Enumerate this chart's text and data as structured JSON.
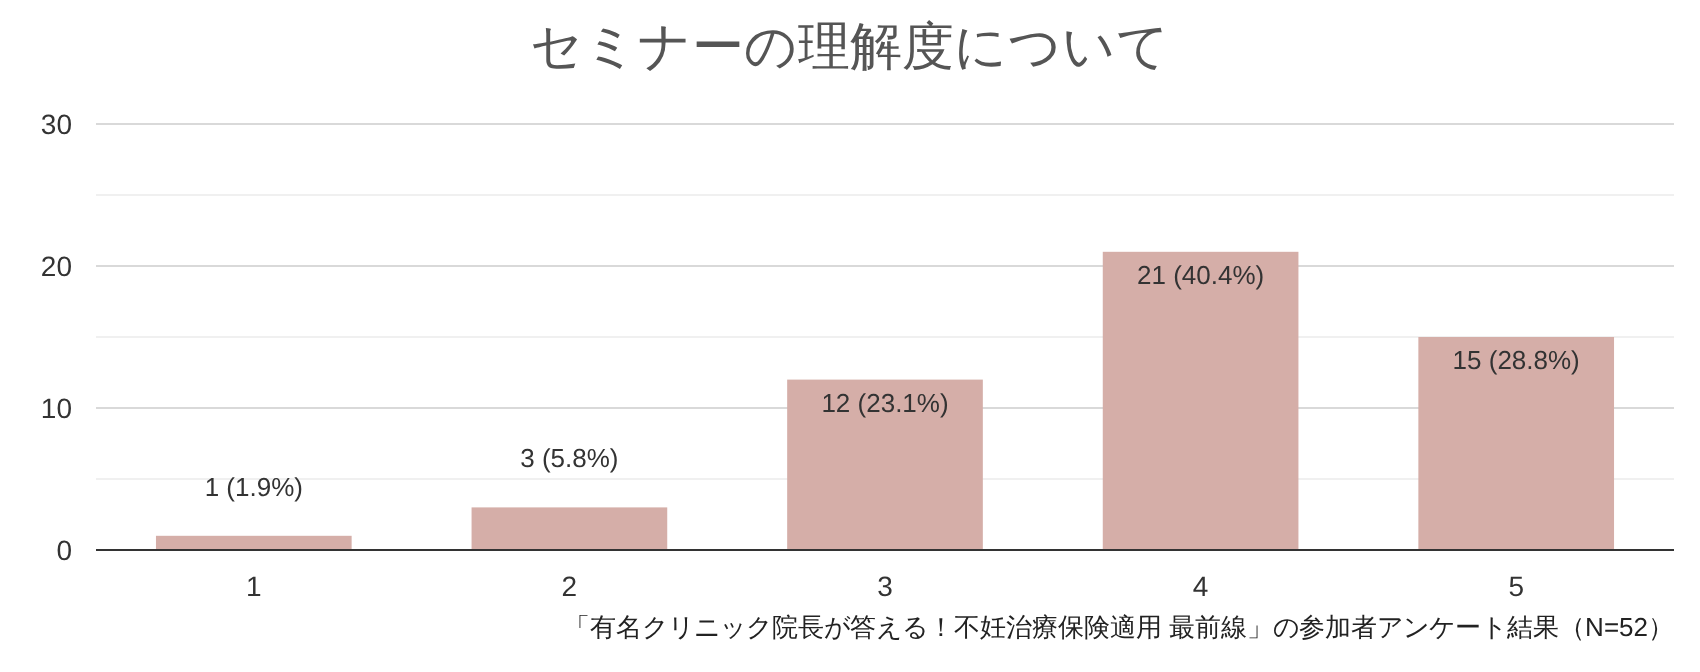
{
  "chart_data": {
    "type": "bar",
    "title": "セミナーの理解度について",
    "categories": [
      "1",
      "2",
      "3",
      "4",
      "5"
    ],
    "values": [
      1,
      3,
      12,
      21,
      15
    ],
    "value_labels": [
      "1 (1.9%)",
      "3 (5.8%)",
      "12 (23.1%)",
      "21 (40.4%)",
      "15 (28.8%)"
    ],
    "color": "#d5aea8",
    "ylim": [
      0,
      30
    ],
    "yticks": [
      0,
      {
        "value": 5,
        "label": null
      },
      10,
      {
        "value": 15,
        "label": null
      },
      20,
      {
        "value": 25,
        "label": null
      },
      30
    ],
    "grid": "y",
    "annotations": [
      "「有名クリニック院長が答える！不妊治療保険適用 最前線」の参加者アンケート結果（N=52）"
    ]
  }
}
